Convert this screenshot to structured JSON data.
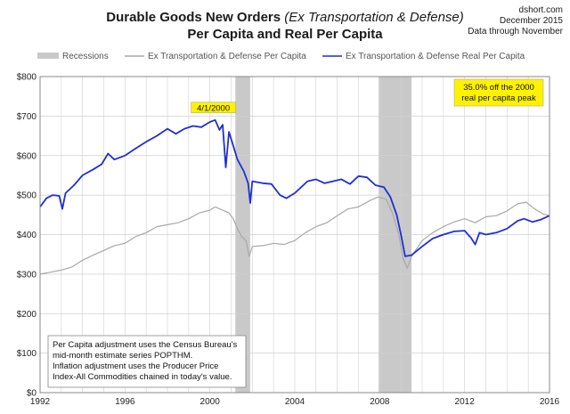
{
  "header": {
    "title_line1_main": "Durable Goods New Orders ",
    "title_line1_italic": "(Ex Transportation & Defense)",
    "title_line2": "Per Capita and Real Per Capita",
    "source": "dshort.com",
    "date": "December 2015",
    "data_through": "Data through November"
  },
  "legend": {
    "recessions": "Recessions",
    "series_gray": "Ex Transportation & Defense Per Capita",
    "series_blue": "Ex Transportation & Defense Real Per Capita"
  },
  "annotations": {
    "peak_label": "4/1/2000",
    "off_peak_line1": "35.0% off the 2000",
    "off_peak_line2": "real per capita peak"
  },
  "note": {
    "line1": "Per Capita adjustment uses the Census Bureau's",
    "line2": "mid-month estimate series POPTHM.",
    "line3": "Inflation adjustment uses the Producer Price",
    "line4": "Index-All Commodities chained in today's value."
  },
  "colors": {
    "blue": "#1f2fd6",
    "gray": "#a8a8a8",
    "recession": "#c9c9c9",
    "grid": "#d0d0d0",
    "title": "#1a1a1a"
  },
  "chart_data": {
    "type": "line",
    "x_ticks": [
      "1992",
      "1996",
      "2000",
      "2004",
      "2008",
      "2012",
      "2016"
    ],
    "y_ticks": [
      "$0",
      "$100",
      "$200",
      "$300",
      "$400",
      "$500",
      "$600",
      "$700",
      "$800"
    ],
    "xlim": [
      1992,
      2016
    ],
    "ylim": [
      0,
      800
    ],
    "grid": true,
    "legend_position": "top",
    "recessions": [
      [
        2001.2,
        2001.9
      ],
      [
        2007.95,
        2009.5
      ]
    ],
    "series": [
      {
        "name": "Ex Transportation & Defense Per Capita",
        "color": "#a8a8a8",
        "points": [
          [
            1992.0,
            300
          ],
          [
            1992.5,
            305
          ],
          [
            1993.0,
            310
          ],
          [
            1993.5,
            318
          ],
          [
            1994.0,
            335
          ],
          [
            1994.5,
            348
          ],
          [
            1995.0,
            360
          ],
          [
            1995.5,
            372
          ],
          [
            1996.0,
            378
          ],
          [
            1996.5,
            395
          ],
          [
            1997.0,
            405
          ],
          [
            1997.5,
            420
          ],
          [
            1998.0,
            425
          ],
          [
            1998.5,
            430
          ],
          [
            1999.0,
            440
          ],
          [
            1999.5,
            455
          ],
          [
            2000.0,
            462
          ],
          [
            2000.25,
            470
          ],
          [
            2000.6,
            462
          ],
          [
            2000.9,
            455
          ],
          [
            2001.1,
            440
          ],
          [
            2001.3,
            415
          ],
          [
            2001.5,
            395
          ],
          [
            2001.7,
            385
          ],
          [
            2001.85,
            345
          ],
          [
            2002.0,
            370
          ],
          [
            2002.5,
            372
          ],
          [
            2003.0,
            378
          ],
          [
            2003.5,
            375
          ],
          [
            2004.0,
            385
          ],
          [
            2004.5,
            405
          ],
          [
            2005.0,
            420
          ],
          [
            2005.5,
            430
          ],
          [
            2006.0,
            448
          ],
          [
            2006.5,
            465
          ],
          [
            2007.0,
            470
          ],
          [
            2007.5,
            485
          ],
          [
            2007.9,
            495
          ],
          [
            2008.3,
            490
          ],
          [
            2008.6,
            455
          ],
          [
            2008.9,
            400
          ],
          [
            2009.1,
            340
          ],
          [
            2009.3,
            315
          ],
          [
            2009.5,
            345
          ],
          [
            2010.0,
            385
          ],
          [
            2010.5,
            405
          ],
          [
            2011.0,
            420
          ],
          [
            2011.5,
            432
          ],
          [
            2012.0,
            440
          ],
          [
            2012.5,
            430
          ],
          [
            2013.0,
            445
          ],
          [
            2013.5,
            448
          ],
          [
            2014.0,
            460
          ],
          [
            2014.5,
            478
          ],
          [
            2014.9,
            482
          ],
          [
            2015.3,
            465
          ],
          [
            2015.7,
            452
          ],
          [
            2016.0,
            448
          ]
        ]
      },
      {
        "name": "Ex Transportation & Defense Real Per Capita",
        "color": "#1f2fd6",
        "points": [
          [
            1992.0,
            470
          ],
          [
            1992.3,
            492
          ],
          [
            1992.6,
            500
          ],
          [
            1992.9,
            498
          ],
          [
            1993.05,
            465
          ],
          [
            1993.2,
            505
          ],
          [
            1993.6,
            525
          ],
          [
            1994.0,
            550
          ],
          [
            1994.5,
            565
          ],
          [
            1994.9,
            578
          ],
          [
            1995.2,
            605
          ],
          [
            1995.5,
            590
          ],
          [
            1996.0,
            600
          ],
          [
            1996.5,
            618
          ],
          [
            1997.0,
            635
          ],
          [
            1997.5,
            650
          ],
          [
            1998.0,
            668
          ],
          [
            1998.4,
            655
          ],
          [
            1998.8,
            668
          ],
          [
            1999.2,
            675
          ],
          [
            1999.6,
            672
          ],
          [
            2000.0,
            685
          ],
          [
            2000.25,
            690
          ],
          [
            2000.45,
            665
          ],
          [
            2000.6,
            678
          ],
          [
            2000.75,
            570
          ],
          [
            2000.9,
            660
          ],
          [
            2001.1,
            625
          ],
          [
            2001.3,
            590
          ],
          [
            2001.6,
            560
          ],
          [
            2001.8,
            530
          ],
          [
            2001.9,
            480
          ],
          [
            2002.0,
            535
          ],
          [
            2002.5,
            530
          ],
          [
            2002.9,
            528
          ],
          [
            2003.3,
            500
          ],
          [
            2003.6,
            492
          ],
          [
            2004.0,
            505
          ],
          [
            2004.3,
            520
          ],
          [
            2004.6,
            535
          ],
          [
            2005.0,
            540
          ],
          [
            2005.4,
            530
          ],
          [
            2005.8,
            535
          ],
          [
            2006.2,
            540
          ],
          [
            2006.6,
            528
          ],
          [
            2007.0,
            548
          ],
          [
            2007.4,
            545
          ],
          [
            2007.8,
            525
          ],
          [
            2008.2,
            520
          ],
          [
            2008.5,
            495
          ],
          [
            2008.8,
            450
          ],
          [
            2009.0,
            400
          ],
          [
            2009.2,
            345
          ],
          [
            2009.5,
            348
          ],
          [
            2010.0,
            370
          ],
          [
            2010.5,
            390
          ],
          [
            2011.0,
            400
          ],
          [
            2011.5,
            408
          ],
          [
            2012.0,
            410
          ],
          [
            2012.3,
            392
          ],
          [
            2012.5,
            375
          ],
          [
            2012.7,
            405
          ],
          [
            2013.0,
            400
          ],
          [
            2013.5,
            405
          ],
          [
            2014.0,
            415
          ],
          [
            2014.5,
            435
          ],
          [
            2014.8,
            440
          ],
          [
            2015.2,
            432
          ],
          [
            2015.6,
            438
          ],
          [
            2016.0,
            448
          ]
        ]
      }
    ]
  }
}
